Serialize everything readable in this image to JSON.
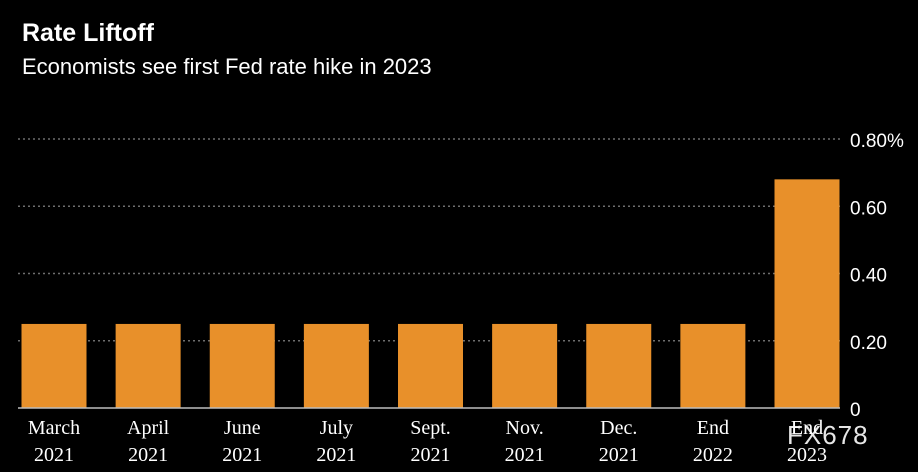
{
  "header": {
    "title": "Rate Liftoff",
    "subtitle": "Economists see first Fed rate hike in 2023"
  },
  "chart_data": {
    "type": "bar",
    "title": "Rate Liftoff",
    "subtitle": "Economists see first Fed rate hike in 2023",
    "categories": [
      [
        "March",
        "2021"
      ],
      [
        "April",
        "2021"
      ],
      [
        "June",
        "2021"
      ],
      [
        "July",
        "2021"
      ],
      [
        "Sept.",
        "2021"
      ],
      [
        "Nov.",
        "2021"
      ],
      [
        "Dec.",
        "2021"
      ],
      [
        "End",
        "2022"
      ],
      [
        "End",
        "2023"
      ]
    ],
    "values": [
      0.25,
      0.25,
      0.25,
      0.25,
      0.25,
      0.25,
      0.25,
      0.25,
      0.68
    ],
    "ylim": [
      0,
      0.8
    ],
    "yticks": [
      0,
      0.2,
      0.4,
      0.6,
      0.8
    ],
    "ytick_labels": [
      "0",
      "0.20",
      "0.40",
      "0.60",
      "0.80%"
    ],
    "xlabel": "",
    "ylabel": "",
    "grid": true,
    "legend": "none",
    "bar_color": "#e8902a"
  },
  "watermark": "FX678"
}
